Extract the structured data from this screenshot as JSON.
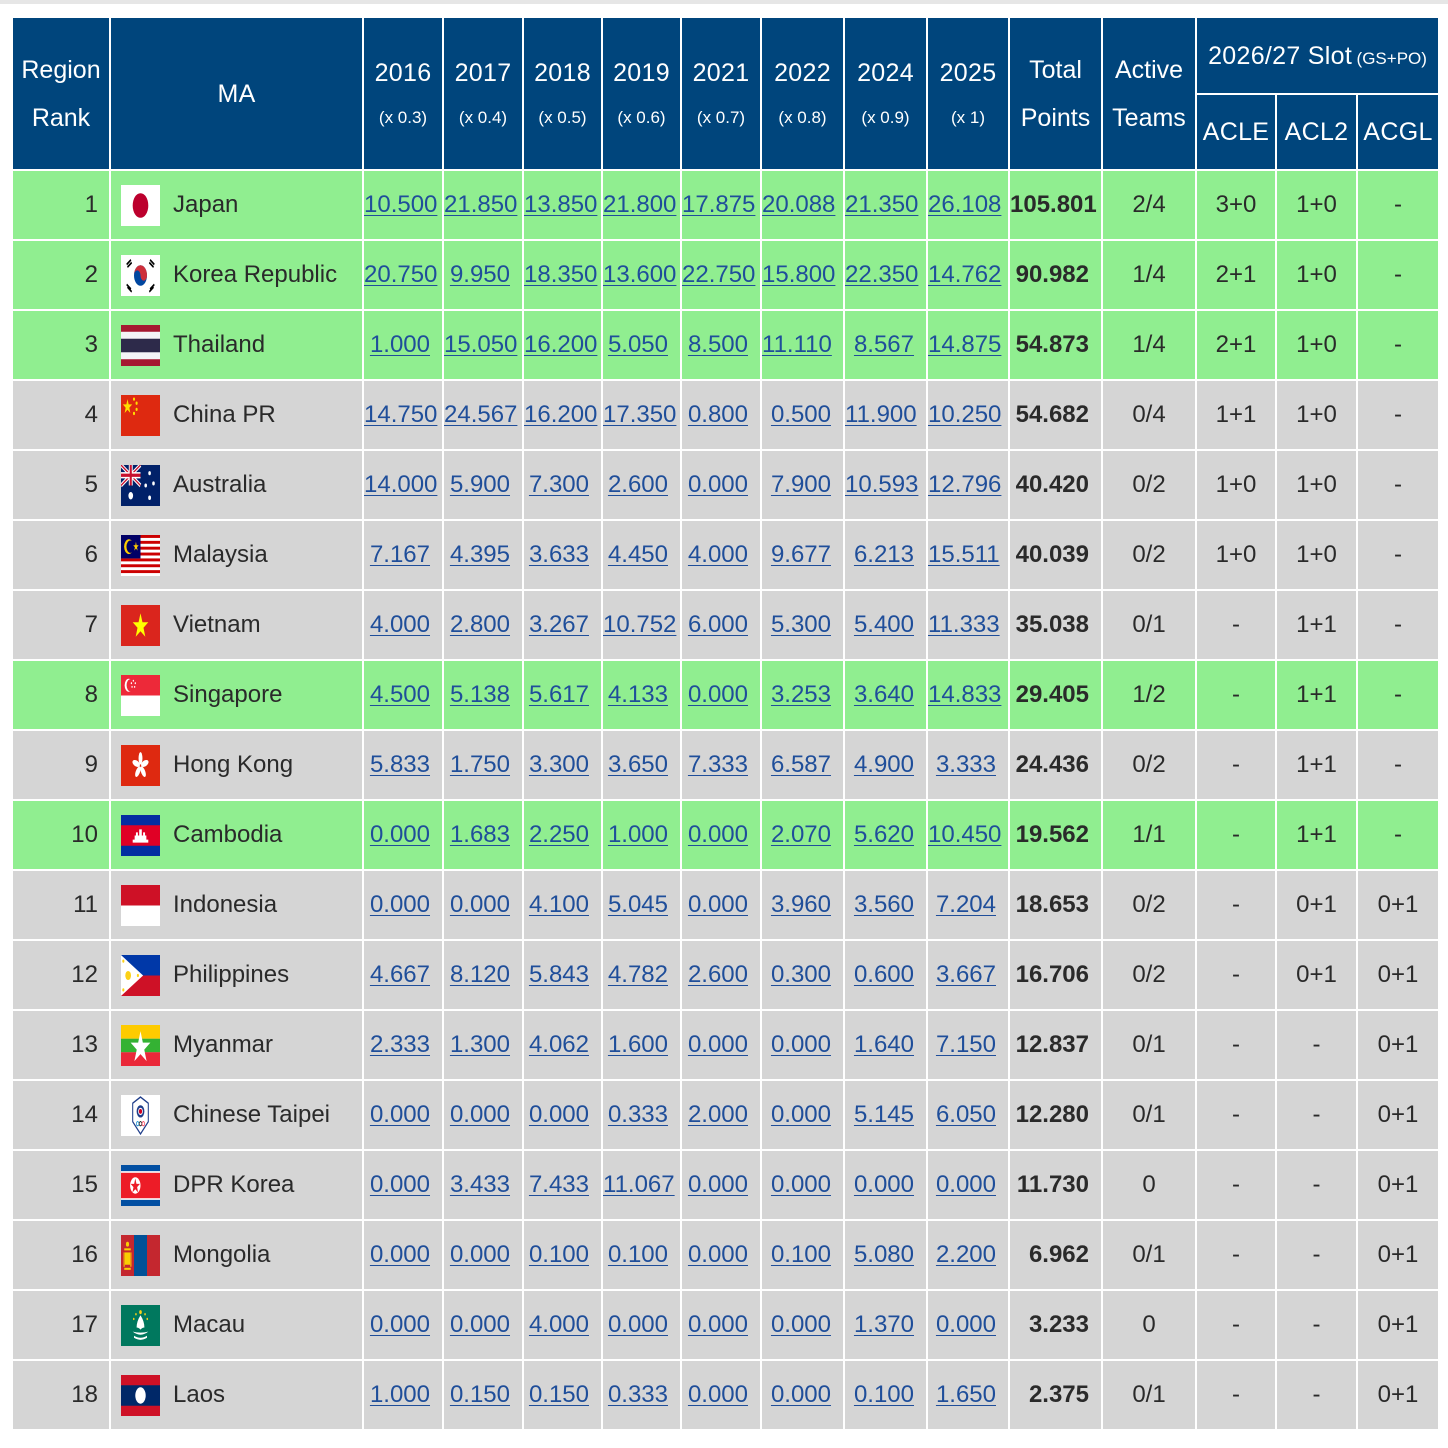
{
  "header": {
    "region_rank": [
      "Region",
      "Rank"
    ],
    "ma": "MA",
    "years": [
      {
        "year": "2016",
        "mult": "(x 0.3)"
      },
      {
        "year": "2017",
        "mult": "(x 0.4)"
      },
      {
        "year": "2018",
        "mult": "(x 0.5)"
      },
      {
        "year": "2019",
        "mult": "(x 0.6)"
      },
      {
        "year": "2021",
        "mult": "(x 0.7)"
      },
      {
        "year": "2022",
        "mult": "(x 0.8)"
      },
      {
        "year": "2024",
        "mult": "(x 0.9)"
      },
      {
        "year": "2025",
        "mult": "(x 1)"
      }
    ],
    "total_points": [
      "Total",
      "Points"
    ],
    "active_teams": [
      "Active",
      "Teams"
    ],
    "slot_title": "2026/27 Slot",
    "slot_subtitle": "(GS+PO)",
    "slots": [
      "ACLE",
      "ACL2",
      "ACGL"
    ]
  },
  "colors": {
    "header_bg": "#00457c",
    "row_highlight": "#90ee90",
    "row_default": "#d5d5d5",
    "link": "#1f4e9a"
  },
  "rows": [
    {
      "rank": "1",
      "name": "Japan",
      "flag": "japan-flag-icon",
      "highlight": true,
      "points": [
        "10.500",
        "21.850",
        "13.850",
        "21.800",
        "17.875",
        "20.088",
        "21.350",
        "26.108"
      ],
      "total": "105.801",
      "active": "2/4",
      "slots": [
        "3+0",
        "1+0",
        "-"
      ]
    },
    {
      "rank": "2",
      "name": "Korea Republic",
      "flag": "korea-republic-flag-icon",
      "highlight": true,
      "points": [
        "20.750",
        "9.950",
        "18.350",
        "13.600",
        "22.750",
        "15.800",
        "22.350",
        "14.762"
      ],
      "total": "90.982",
      "active": "1/4",
      "slots": [
        "2+1",
        "1+0",
        "-"
      ]
    },
    {
      "rank": "3",
      "name": "Thailand",
      "flag": "thailand-flag-icon",
      "highlight": true,
      "points": [
        "1.000",
        "15.050",
        "16.200",
        "5.050",
        "8.500",
        "11.110",
        "8.567",
        "14.875"
      ],
      "total": "54.873",
      "active": "1/4",
      "slots": [
        "2+1",
        "1+0",
        "-"
      ]
    },
    {
      "rank": "4",
      "name": "China PR",
      "flag": "china-flag-icon",
      "highlight": false,
      "points": [
        "14.750",
        "24.567",
        "16.200",
        "17.350",
        "0.800",
        "0.500",
        "11.900",
        "10.250"
      ],
      "total": "54.682",
      "active": "0/4",
      "slots": [
        "1+1",
        "1+0",
        "-"
      ]
    },
    {
      "rank": "5",
      "name": "Australia",
      "flag": "australia-flag-icon",
      "highlight": false,
      "points": [
        "14.000",
        "5.900",
        "7.300",
        "2.600",
        "0.000",
        "7.900",
        "10.593",
        "12.796"
      ],
      "total": "40.420",
      "active": "0/2",
      "slots": [
        "1+0",
        "1+0",
        "-"
      ]
    },
    {
      "rank": "6",
      "name": "Malaysia",
      "flag": "malaysia-flag-icon",
      "highlight": false,
      "points": [
        "7.167",
        "4.395",
        "3.633",
        "4.450",
        "4.000",
        "9.677",
        "6.213",
        "15.511"
      ],
      "total": "40.039",
      "active": "0/2",
      "slots": [
        "1+0",
        "1+0",
        "-"
      ]
    },
    {
      "rank": "7",
      "name": "Vietnam",
      "flag": "vietnam-flag-icon",
      "highlight": false,
      "points": [
        "4.000",
        "2.800",
        "3.267",
        "10.752",
        "6.000",
        "5.300",
        "5.400",
        "11.333"
      ],
      "total": "35.038",
      "active": "0/1",
      "slots": [
        "-",
        "1+1",
        "-"
      ]
    },
    {
      "rank": "8",
      "name": "Singapore",
      "flag": "singapore-flag-icon",
      "highlight": true,
      "points": [
        "4.500",
        "5.138",
        "5.617",
        "4.133",
        "0.000",
        "3.253",
        "3.640",
        "14.833"
      ],
      "total": "29.405",
      "active": "1/2",
      "slots": [
        "-",
        "1+1",
        "-"
      ]
    },
    {
      "rank": "9",
      "name": "Hong Kong",
      "flag": "hong-kong-flag-icon",
      "highlight": false,
      "points": [
        "5.833",
        "1.750",
        "3.300",
        "3.650",
        "7.333",
        "6.587",
        "4.900",
        "3.333"
      ],
      "total": "24.436",
      "active": "0/2",
      "slots": [
        "-",
        "1+1",
        "-"
      ]
    },
    {
      "rank": "10",
      "name": "Cambodia",
      "flag": "cambodia-flag-icon",
      "highlight": true,
      "points": [
        "0.000",
        "1.683",
        "2.250",
        "1.000",
        "0.000",
        "2.070",
        "5.620",
        "10.450"
      ],
      "total": "19.562",
      "active": "1/1",
      "slots": [
        "-",
        "1+1",
        "-"
      ]
    },
    {
      "rank": "11",
      "name": "Indonesia",
      "flag": "indonesia-flag-icon",
      "highlight": false,
      "points": [
        "0.000",
        "0.000",
        "4.100",
        "5.045",
        "0.000",
        "3.960",
        "3.560",
        "7.204"
      ],
      "total": "18.653",
      "active": "0/2",
      "slots": [
        "-",
        "0+1",
        "0+1"
      ]
    },
    {
      "rank": "12",
      "name": "Philippines",
      "flag": "philippines-flag-icon",
      "highlight": false,
      "points": [
        "4.667",
        "8.120",
        "5.843",
        "4.782",
        "2.600",
        "0.300",
        "0.600",
        "3.667"
      ],
      "total": "16.706",
      "active": "0/2",
      "slots": [
        "-",
        "0+1",
        "0+1"
      ]
    },
    {
      "rank": "13",
      "name": "Myanmar",
      "flag": "myanmar-flag-icon",
      "highlight": false,
      "points": [
        "2.333",
        "1.300",
        "4.062",
        "1.600",
        "0.000",
        "0.000",
        "1.640",
        "7.150"
      ],
      "total": "12.837",
      "active": "0/1",
      "slots": [
        "-",
        "-",
        "0+1"
      ]
    },
    {
      "rank": "14",
      "name": "Chinese Taipei",
      "flag": "chinese-taipei-flag-icon",
      "highlight": false,
      "points": [
        "0.000",
        "0.000",
        "0.000",
        "0.333",
        "2.000",
        "0.000",
        "5.145",
        "6.050"
      ],
      "total": "12.280",
      "active": "0/1",
      "slots": [
        "-",
        "-",
        "0+1"
      ]
    },
    {
      "rank": "15",
      "name": "DPR Korea",
      "flag": "dpr-korea-flag-icon",
      "highlight": false,
      "points": [
        "0.000",
        "3.433",
        "7.433",
        "11.067",
        "0.000",
        "0.000",
        "0.000",
        "0.000"
      ],
      "total": "11.730",
      "active": "0",
      "slots": [
        "-",
        "-",
        "0+1"
      ]
    },
    {
      "rank": "16",
      "name": "Mongolia",
      "flag": "mongolia-flag-icon",
      "highlight": false,
      "points": [
        "0.000",
        "0.000",
        "0.100",
        "0.100",
        "0.000",
        "0.100",
        "5.080",
        "2.200"
      ],
      "total": "6.962",
      "active": "0/1",
      "slots": [
        "-",
        "-",
        "0+1"
      ]
    },
    {
      "rank": "17",
      "name": "Macau",
      "flag": "macau-flag-icon",
      "highlight": false,
      "points": [
        "0.000",
        "0.000",
        "4.000",
        "0.000",
        "0.000",
        "0.000",
        "1.370",
        "0.000"
      ],
      "total": "3.233",
      "active": "0",
      "slots": [
        "-",
        "-",
        "0+1"
      ]
    },
    {
      "rank": "18",
      "name": "Laos",
      "flag": "laos-flag-icon",
      "highlight": false,
      "points": [
        "1.000",
        "0.150",
        "0.150",
        "0.333",
        "0.000",
        "0.000",
        "0.100",
        "1.650"
      ],
      "total": "2.375",
      "active": "0/1",
      "slots": [
        "-",
        "-",
        "0+1"
      ]
    }
  ]
}
